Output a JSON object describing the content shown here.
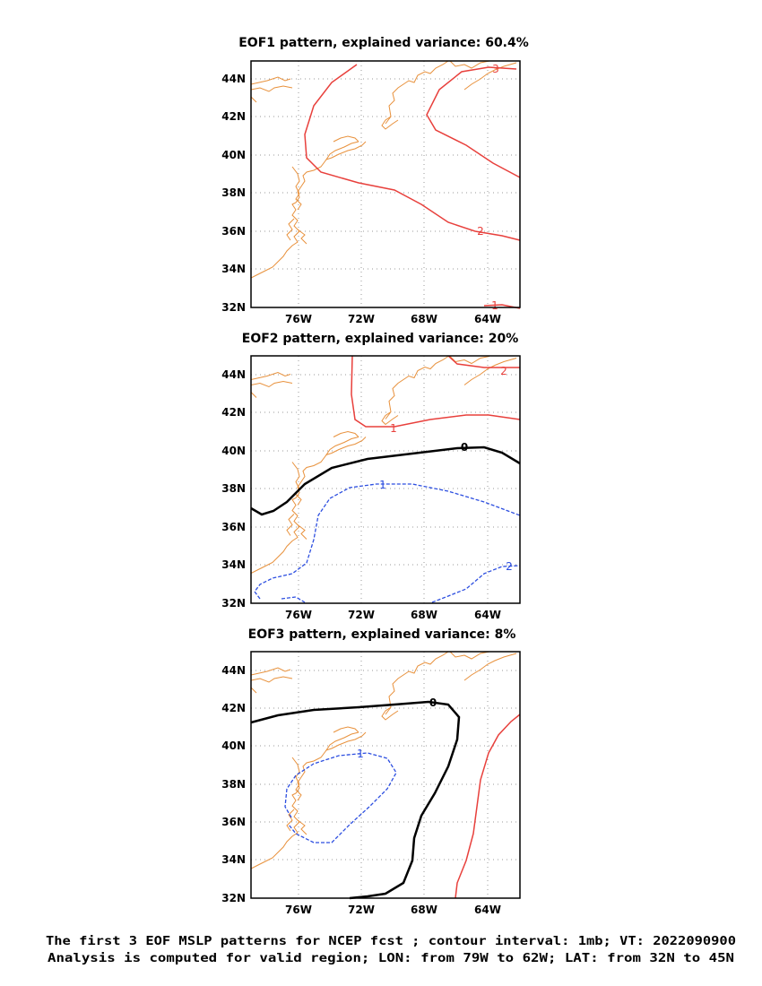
{
  "panels": [
    {
      "title": "EOF1 pattern, explained variance: 60.4%",
      "contours": [
        {
          "level": "3",
          "color": "#e8403c",
          "style": "solid"
        },
        {
          "level": "2",
          "color": "#e8403c",
          "style": "solid"
        },
        {
          "level": "1",
          "color": "#e8403c",
          "style": "solid"
        }
      ]
    },
    {
      "title": "EOF2 pattern, explained variance: 20%",
      "contours": [
        {
          "level": "2",
          "color": "#e8403c",
          "style": "solid"
        },
        {
          "level": "1",
          "color": "#e8403c",
          "style": "solid"
        },
        {
          "level": "0",
          "color": "#000000",
          "style": "solid-thick"
        },
        {
          "level": "-1",
          "color": "#2c4ee0",
          "style": "dashed"
        },
        {
          "level": "-2",
          "color": "#2c4ee0",
          "style": "dashed"
        }
      ]
    },
    {
      "title": "EOF3 pattern, explained variance: 8%",
      "contours": [
        {
          "level": "0",
          "color": "#000000",
          "style": "solid-thick"
        },
        {
          "level": "-1",
          "color": "#2c4ee0",
          "style": "dashed"
        },
        {
          "level": "1",
          "color": "#e8403c",
          "style": "solid"
        }
      ]
    }
  ],
  "axes": {
    "x_ticks": [
      "76W",
      "72W",
      "68W",
      "64W"
    ],
    "y_ticks": [
      "44N",
      "42N",
      "40N",
      "38N",
      "36N",
      "34N",
      "32N"
    ],
    "lon_range": [
      -79,
      -62
    ],
    "lat_range": [
      32,
      45
    ]
  },
  "contour_labels": {
    "p1": [
      "3",
      "2",
      "1"
    ],
    "p2": [
      "2",
      "1",
      "0",
      "1",
      "2"
    ],
    "p3": [
      "0",
      "1"
    ]
  },
  "caption": {
    "line1": "The first 3 EOF MSLP patterns for NCEP fcst ; contour interval: 1mb; VT: 2022090900",
    "line2": "Analysis is computed for valid region; LON: from 79W to 62W; LAT: from 32N to 45N"
  },
  "colors": {
    "positive": "#e8403c",
    "zero": "#000000",
    "negative": "#2c4ee0",
    "coastline": "#e8913c"
  }
}
